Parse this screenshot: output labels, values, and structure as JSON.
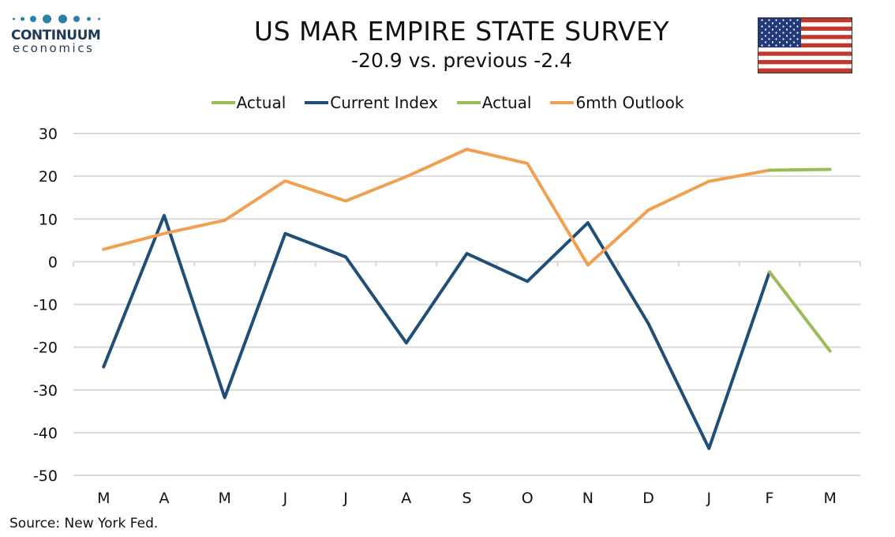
{
  "header": {
    "title": "US MAR EMPIRE STATE SURVEY",
    "subtitle": "-20.9 vs. previous -2.4"
  },
  "logo": {
    "word": "CONTINUUM",
    "sub": "economics",
    "color": "#1e3a58",
    "dot_color": "#2d7fa6"
  },
  "flag": {
    "icon": "us-flag-icon"
  },
  "source": "Source: New York Fed.",
  "chart_data": {
    "type": "line",
    "categories": [
      "M",
      "A",
      "M",
      "J",
      "J",
      "A",
      "S",
      "O",
      "N",
      "D",
      "J",
      "F",
      "M"
    ],
    "ylim": [
      -50,
      30
    ],
    "yticks": [
      30,
      20,
      10,
      0,
      -10,
      -20,
      -30,
      -40,
      -50
    ],
    "grid": true,
    "legend_position": "top",
    "legend": [
      {
        "label": "Actual",
        "color": "#9bbb59"
      },
      {
        "label": "Current Index",
        "color": "#1f4e79"
      },
      {
        "label": "Actual",
        "color": "#9bbb59"
      },
      {
        "label": "6mth Outlook",
        "color": "#f0a050"
      }
    ],
    "series": [
      {
        "name": "Current Index",
        "color": "#1f4e79",
        "values": [
          -24.6,
          10.8,
          -31.8,
          6.6,
          1.1,
          -19.0,
          1.9,
          -4.6,
          9.1,
          -14.5,
          -43.7,
          -2.4,
          null
        ]
      },
      {
        "name": "Actual",
        "color": "#9bbb59",
        "values": [
          null,
          null,
          null,
          null,
          null,
          null,
          null,
          null,
          null,
          null,
          null,
          -2.4,
          -20.9
        ]
      },
      {
        "name": "6mth Outlook",
        "color": "#f0a050",
        "values": [
          2.9,
          6.6,
          9.7,
          18.9,
          14.2,
          19.9,
          26.3,
          23.0,
          -0.8,
          12.1,
          18.8,
          21.4,
          null
        ]
      },
      {
        "name": "Actual",
        "color": "#9bbb59",
        "values": [
          null,
          null,
          null,
          null,
          null,
          null,
          null,
          null,
          null,
          null,
          null,
          21.4,
          21.6
        ]
      }
    ]
  }
}
